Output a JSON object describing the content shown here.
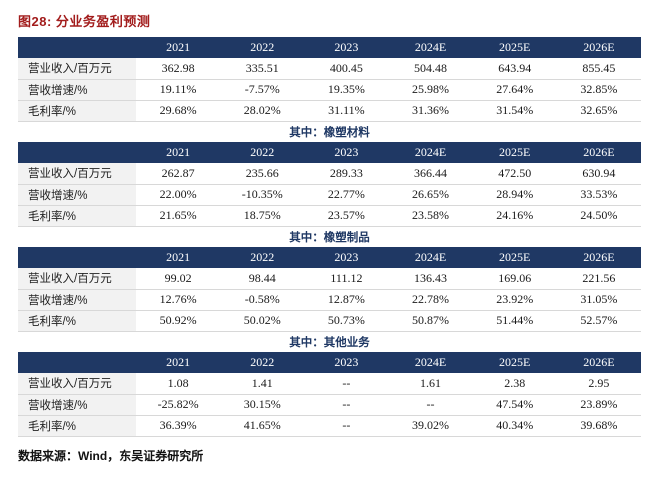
{
  "page": {
    "title": "图28:  分业务盈利预测",
    "source": "数据来源：Wind，东吴证券研究所"
  },
  "colors": {
    "header_bg": "#1F3864",
    "title_red": "#A21C1C",
    "row_border": "#D8D8D8",
    "label_bg": "#F2F2F2",
    "section_text": "#1F3864"
  },
  "chart_data": {
    "type": "table",
    "title": "分业务盈利预测",
    "years": [
      "2021",
      "2022",
      "2023",
      "2024E",
      "2025E",
      "2026E"
    ],
    "row_labels": [
      "营业收入/百万元",
      "营收增速/%",
      "毛利率/%"
    ],
    "sections": [
      {
        "name": "",
        "rows": [
          {
            "label": "营业收入/百万元",
            "values": [
              "362.98",
              "335.51",
              "400.45",
              "504.48",
              "643.94",
              "855.45"
            ]
          },
          {
            "label": "营收增速/%",
            "values": [
              "19.11%",
              "-7.57%",
              "19.35%",
              "25.98%",
              "27.64%",
              "32.85%"
            ]
          },
          {
            "label": "毛利率/%",
            "values": [
              "29.68%",
              "28.02%",
              "31.11%",
              "31.36%",
              "31.54%",
              "32.65%"
            ]
          }
        ]
      },
      {
        "name": "其中：橡塑材料",
        "rows": [
          {
            "label": "营业收入/百万元",
            "values": [
              "262.87",
              "235.66",
              "289.33",
              "366.44",
              "472.50",
              "630.94"
            ]
          },
          {
            "label": "营收增速/%",
            "values": [
              "22.00%",
              "-10.35%",
              "22.77%",
              "26.65%",
              "28.94%",
              "33.53%"
            ]
          },
          {
            "label": "毛利率/%",
            "values": [
              "21.65%",
              "18.75%",
              "23.57%",
              "23.58%",
              "24.16%",
              "24.50%"
            ]
          }
        ]
      },
      {
        "name": "其中：橡塑制品",
        "rows": [
          {
            "label": "营业收入/百万元",
            "values": [
              "99.02",
              "98.44",
              "111.12",
              "136.43",
              "169.06",
              "221.56"
            ]
          },
          {
            "label": "营收增速/%",
            "values": [
              "12.76%",
              "-0.58%",
              "12.87%",
              "22.78%",
              "23.92%",
              "31.05%"
            ]
          },
          {
            "label": "毛利率/%",
            "values": [
              "50.92%",
              "50.02%",
              "50.73%",
              "50.87%",
              "51.44%",
              "52.57%"
            ]
          }
        ]
      },
      {
        "name": "其中：其他业务",
        "rows": [
          {
            "label": "营业收入/百万元",
            "values": [
              "1.08",
              "1.41",
              "--",
              "1.61",
              "2.38",
              "2.95"
            ]
          },
          {
            "label": "营收增速/%",
            "values": [
              "-25.82%",
              "30.15%",
              "--",
              "--",
              "47.54%",
              "23.89%"
            ]
          },
          {
            "label": "毛利率/%",
            "values": [
              "36.39%",
              "41.65%",
              "--",
              "39.02%",
              "40.34%",
              "39.68%"
            ]
          }
        ]
      }
    ]
  }
}
